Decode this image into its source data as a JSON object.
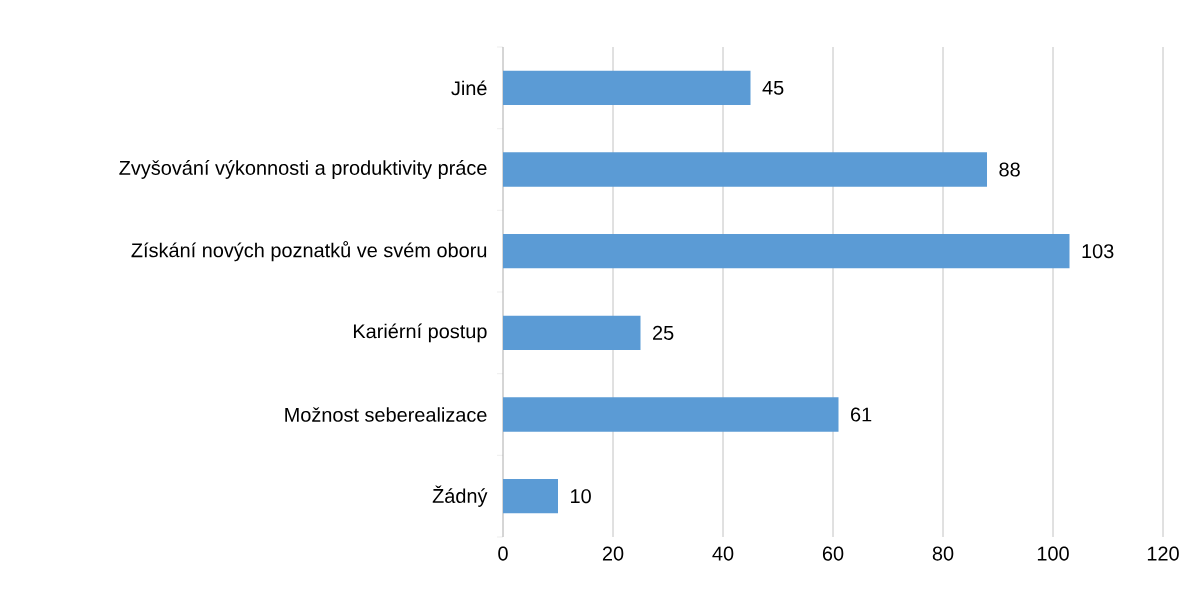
{
  "chart_data": {
    "type": "bar",
    "orientation": "horizontal",
    "categories": [
      "Jiné",
      "Zvyšování výkonnosti a produktivity práce",
      "Získání nových poznatků ve svém oboru",
      "Kariérní postup",
      "Možnost seberealizace",
      "Žádný"
    ],
    "values": [
      45,
      88,
      103,
      25,
      61,
      10
    ],
    "color": "#5b9bd5",
    "xlim": [
      0,
      120
    ],
    "xticks": [
      0,
      20,
      40,
      60,
      80,
      100,
      120
    ],
    "grid": "x",
    "data_labels": true
  }
}
